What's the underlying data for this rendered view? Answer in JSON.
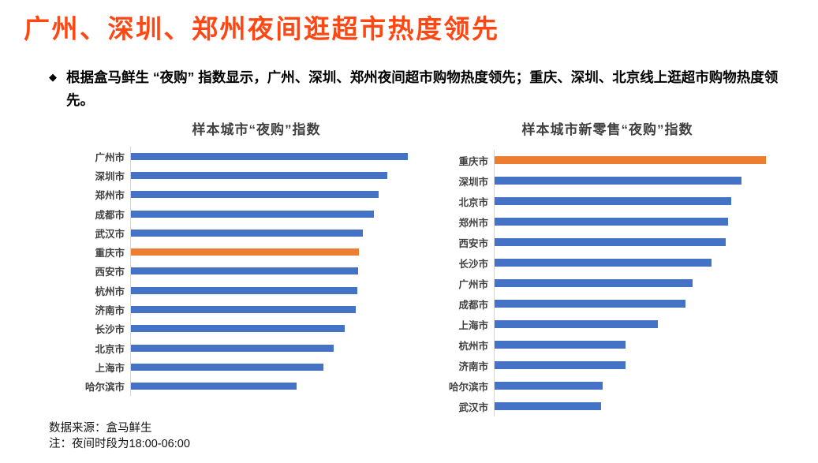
{
  "page": {
    "title": "广州、深圳、郑州夜间逛超市热度领先",
    "bullet_marker": "◆",
    "bullet_text": "根据盒马鲜生 “夜购” 指数显示，广州、深圳、郑州夜间超市购物热度领先；重庆、深圳、北京线上逛超市购物热度领先。",
    "footer_source": "数据来源：盒马鲜生",
    "footer_note": "注：夜间时段为18:00-06:00"
  },
  "colors": {
    "title_accent": "#FF4713",
    "bar_blue": "#4472C4",
    "bar_orange": "#ED7D31",
    "axis_line": "#D6D6D6",
    "label_text": "#404040",
    "chart_title_text": "#3F3F3F"
  },
  "chart_data": [
    {
      "type": "bar",
      "orientation": "horizontal",
      "title": "样本城市“夜购”指数",
      "categories": [
        "广州市",
        "深圳市",
        "郑州市",
        "成都市",
        "武汉市",
        "重庆市",
        "西安市",
        "杭州市",
        "济南市",
        "长沙市",
        "北京市",
        "上海市",
        "哈尔滨市"
      ],
      "values": [
        100,
        92.5,
        89.6,
        87.9,
        83.8,
        82.4,
        82.1,
        81.8,
        81.2,
        77.2,
        73.1,
        69.4,
        59.8
      ],
      "value_scale": "relative index, longest bar = 100 (no axis labels shown)",
      "xlim": [
        0,
        108
      ],
      "bar_color": "#4472C4",
      "highlight_category": "重庆市",
      "highlight_color": "#ED7D31",
      "grid": false,
      "legend": false
    },
    {
      "type": "bar",
      "orientation": "horizontal",
      "title": "样本城市新零售“夜购”指数",
      "categories": [
        "重庆市",
        "深圳市",
        "北京市",
        "郑州市",
        "西安市",
        "长沙市",
        "广州市",
        "成都市",
        "上海市",
        "杭州市",
        "济南市",
        "哈尔滨市",
        "武汉市"
      ],
      "values": [
        100,
        91.0,
        87.3,
        86.1,
        85.2,
        80.1,
        72.9,
        70.5,
        60.2,
        48.2,
        48.2,
        39.8,
        39.2
      ],
      "value_scale": "relative index, longest bar = 100 (no axis labels shown)",
      "xlim": [
        0,
        107
      ],
      "bar_color": "#4472C4",
      "highlight_category": "重庆市",
      "highlight_color": "#ED7D31",
      "grid": false,
      "legend": false
    }
  ]
}
